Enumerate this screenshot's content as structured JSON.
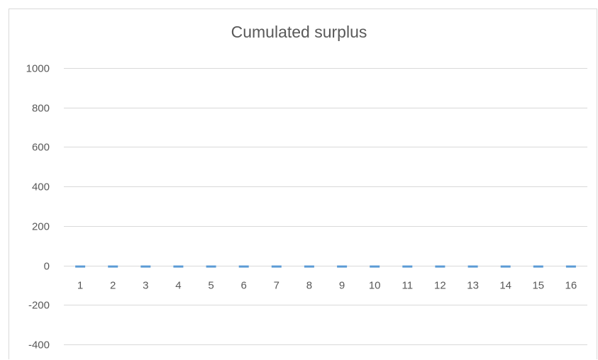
{
  "chart_data": {
    "type": "bar",
    "title": "Cumulated surplus",
    "xlabel": "",
    "ylabel": "",
    "categories": [
      "1",
      "2",
      "3",
      "4",
      "5",
      "6",
      "7",
      "8",
      "9",
      "10",
      "11",
      "12",
      "13",
      "14",
      "15",
      "16"
    ],
    "series": [
      {
        "values": [
          -8,
          -8,
          -8,
          -8,
          -8,
          -8,
          -8,
          -8,
          -8,
          -8,
          -8,
          -8,
          -8,
          -8,
          -8,
          -8
        ]
      }
    ],
    "ylim": [
      -400,
      1000
    ],
    "yticks": [
      -400,
      -200,
      0,
      200,
      400,
      600,
      800,
      1000
    ],
    "grid": true,
    "legend": "none",
    "colors": {
      "bar": "#5b9bd5",
      "grid": "#d9d9d9",
      "text": "#595959"
    }
  }
}
